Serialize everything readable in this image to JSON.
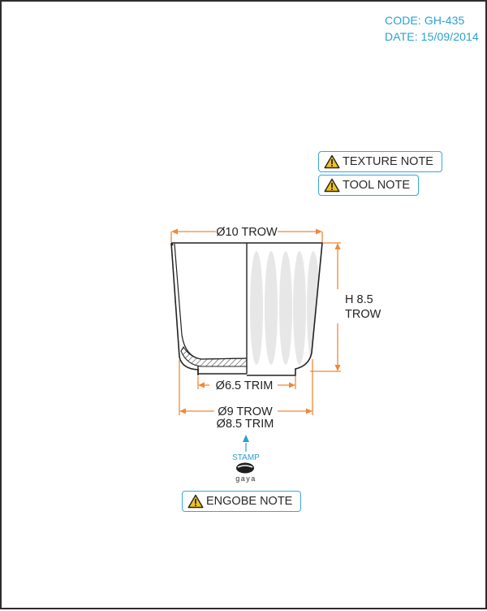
{
  "header": {
    "code": "CODE: GH-435",
    "date": "DATE: 15/09/2014"
  },
  "notes": {
    "texture": "TEXTURE NOTE",
    "tool": "TOOL NOTE",
    "engobe": "ENGOBE NOTE"
  },
  "dimensions": {
    "top_diameter": "Ø10 TROW",
    "height_line1": "H 8.5",
    "height_line2": "TROW",
    "foot_trim": "Ø6.5 TRIM",
    "base_trow": "Ø9 TROW",
    "base_trim": "Ø8.5 TRIM"
  },
  "stamp": {
    "label": "STAMP",
    "brand": "gaya"
  },
  "colors": {
    "dimension": "#f0883a",
    "accent": "#2aa0d2",
    "outline": "#222222",
    "warning": "#f2c21b"
  },
  "icons": {
    "warning": "warning-triangle-icon",
    "stamp": "stamp-mark-icon"
  }
}
